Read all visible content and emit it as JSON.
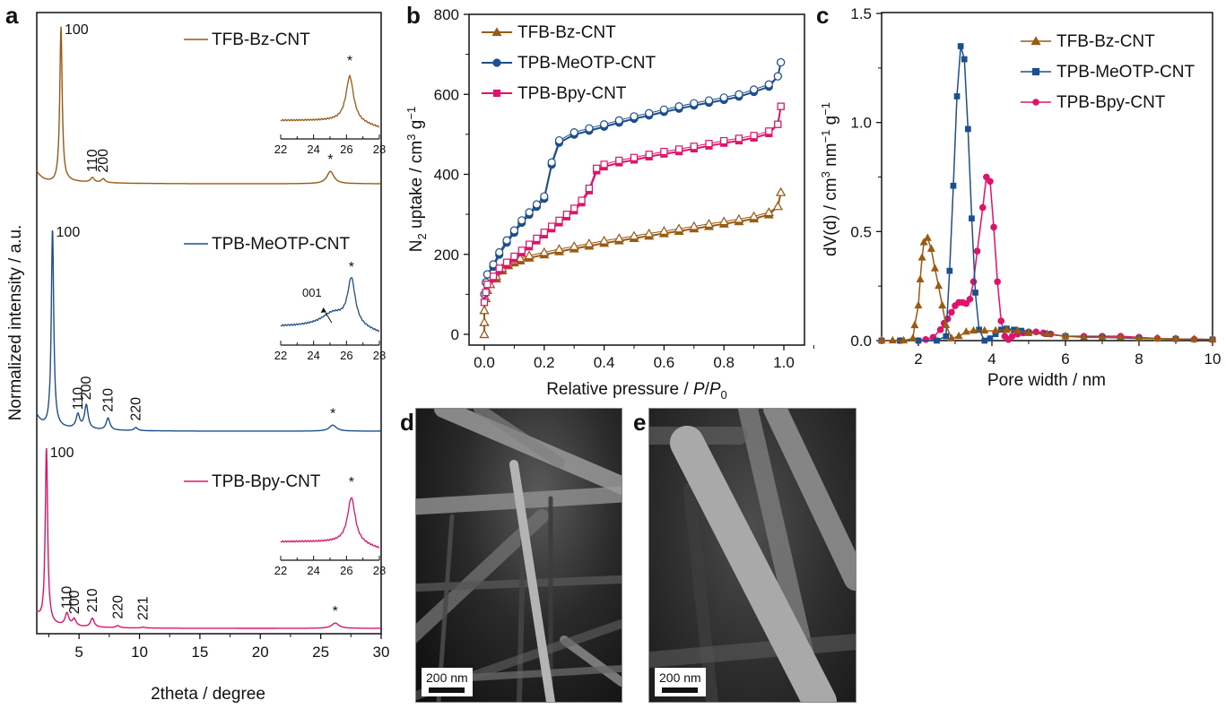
{
  "colors": {
    "TFB-Bz-CNT": "#9b5a12",
    "TPB-MeOTP-CNT": "#1c4f8f",
    "TPB-Bpy-CNT": "#e0136b"
  },
  "panels": {
    "a": {
      "letter": "a"
    },
    "b": {
      "letter": "b"
    },
    "c": {
      "letter": "c"
    },
    "d": {
      "letter": "d",
      "scale_bar": "200 nm"
    },
    "e": {
      "letter": "e",
      "scale_bar": "200 nm"
    }
  },
  "chart_data": [
    {
      "id": "a",
      "type": "line",
      "title": "",
      "xlabel": "2theta / degree",
      "ylabel": "Normalized intensity / a.u.",
      "xlim": [
        1.5,
        30
      ],
      "xticks": [
        5,
        10,
        15,
        20,
        25,
        30
      ],
      "yticks": [],
      "grid": false,
      "series": [
        {
          "name": "TFB-Bz-CNT",
          "peaks": [
            {
              "x": 3.5,
              "label": "100",
              "rel": 1.0
            },
            {
              "x": 6.1,
              "label": "110",
              "rel": 0.03
            },
            {
              "x": 7.0,
              "label": "200",
              "rel": 0.025
            },
            {
              "x": 25.8,
              "label": "*",
              "rel": 0.08
            }
          ],
          "inset": {
            "xlim": [
              22,
              28
            ],
            "xticks": [
              22,
              24,
              26,
              28
            ],
            "peak_x": 26.2,
            "peak_label": "*"
          }
        },
        {
          "name": "TPB-MeOTP-CNT",
          "peaks": [
            {
              "x": 2.8,
              "label": "100",
              "rel": 1.0
            },
            {
              "x": 4.9,
              "label": "110",
              "rel": 0.07
            },
            {
              "x": 5.6,
              "label": "200",
              "rel": 0.12
            },
            {
              "x": 7.4,
              "label": "210",
              "rel": 0.06
            },
            {
              "x": 9.7,
              "label": "220",
              "rel": 0.015
            },
            {
              "x": 26.0,
              "label": "*",
              "rel": 0.03
            }
          ],
          "inset": {
            "xlim": [
              22,
              28
            ],
            "xticks": [
              22,
              24,
              26,
              28
            ],
            "peak_x": 26.3,
            "peak_label": "*",
            "annotation": "001",
            "annotation_x": 25.0
          }
        },
        {
          "name": "TPB-Bpy-CNT",
          "peaks": [
            {
              "x": 2.3,
              "label": "100",
              "rel": 1.0
            },
            {
              "x": 4.0,
              "label": "110",
              "rel": 0.07
            },
            {
              "x": 4.6,
              "label": "200",
              "rel": 0.04
            },
            {
              "x": 6.1,
              "label": "210",
              "rel": 0.05
            },
            {
              "x": 8.2,
              "label": "220",
              "rel": 0.012
            },
            {
              "x": 10.3,
              "label": "221",
              "rel": 0.005
            },
            {
              "x": 26.2,
              "label": "*",
              "rel": 0.03
            }
          ],
          "inset": {
            "xlim": [
              22,
              28
            ],
            "xticks": [
              22,
              24,
              26,
              28
            ],
            "peak_x": 26.3,
            "peak_label": "*"
          }
        }
      ]
    },
    {
      "id": "b",
      "type": "line",
      "title": "",
      "xlabel": "Relative pressure / P/P0",
      "ylabel": "N2 uptake / cm3 g-1",
      "xlim": [
        -0.03,
        1.07
      ],
      "ylim": [
        -20,
        800
      ],
      "xticks": [
        0.0,
        0.2,
        0.4,
        0.6,
        0.8,
        1.0
      ],
      "xtick_labels": [
        "0.0",
        "0.2",
        "0.4",
        "0.6",
        "0.8",
        "1.0"
      ],
      "yticks": [
        0,
        200,
        400,
        600,
        800
      ],
      "grid": false,
      "legend": "top-left",
      "series": [
        {
          "name": "TFB-Bz-CNT",
          "marker": "triangle",
          "x": [
            0.0,
            0.0,
            0.0,
            0.005,
            0.01,
            0.02,
            0.04,
            0.06,
            0.08,
            0.1,
            0.12,
            0.15,
            0.2,
            0.25,
            0.3,
            0.35,
            0.4,
            0.45,
            0.5,
            0.55,
            0.6,
            0.65,
            0.7,
            0.75,
            0.8,
            0.85,
            0.9,
            0.95,
            0.98,
            0.99
          ],
          "y": [
            0,
            30,
            60,
            90,
            110,
            125,
            145,
            165,
            178,
            185,
            190,
            197,
            205,
            213,
            220,
            227,
            234,
            240,
            246,
            252,
            258,
            264,
            270,
            276,
            282,
            288,
            295,
            305,
            320,
            355
          ]
        },
        {
          "name": "TPB-MeOTP-CNT",
          "marker": "circle",
          "x": [
            0.0,
            0.005,
            0.01,
            0.03,
            0.05,
            0.075,
            0.1,
            0.125,
            0.15,
            0.175,
            0.2,
            0.225,
            0.25,
            0.3,
            0.35,
            0.4,
            0.45,
            0.5,
            0.55,
            0.6,
            0.65,
            0.7,
            0.75,
            0.8,
            0.85,
            0.9,
            0.95,
            0.98,
            0.99
          ],
          "y": [
            100,
            130,
            150,
            175,
            205,
            235,
            260,
            285,
            305,
            325,
            345,
            430,
            485,
            505,
            515,
            525,
            535,
            545,
            553,
            562,
            570,
            578,
            585,
            592,
            600,
            612,
            625,
            645,
            680
          ]
        },
        {
          "name": "TPB-Bpy-CNT",
          "marker": "square",
          "x": [
            0.0,
            0.005,
            0.01,
            0.03,
            0.05,
            0.075,
            0.1,
            0.125,
            0.15,
            0.175,
            0.2,
            0.225,
            0.25,
            0.275,
            0.3,
            0.325,
            0.35,
            0.375,
            0.4,
            0.45,
            0.5,
            0.55,
            0.6,
            0.65,
            0.7,
            0.75,
            0.8,
            0.85,
            0.9,
            0.95,
            0.98,
            0.99
          ],
          "y": [
            80,
            105,
            125,
            145,
            165,
            180,
            195,
            210,
            225,
            240,
            255,
            270,
            285,
            300,
            315,
            335,
            365,
            415,
            425,
            435,
            442,
            450,
            457,
            463,
            470,
            477,
            484,
            490,
            497,
            508,
            525,
            570
          ]
        }
      ]
    },
    {
      "id": "c",
      "type": "line",
      "title": "",
      "xlabel": "Pore width / nm",
      "ylabel": "dV(d) / cm3 nm-1 g-1",
      "xlim": [
        1,
        10
      ],
      "ylim": [
        0,
        1.5
      ],
      "xticks": [
        2,
        4,
        6,
        8,
        10
      ],
      "yticks": [
        0.0,
        0.5,
        1.0,
        1.5
      ],
      "ytick_labels": [
        "0.0",
        "0.5",
        "1.0",
        "1.5"
      ],
      "grid": false,
      "legend": "top-right",
      "series": [
        {
          "name": "TFB-Bz-CNT",
          "marker": "triangle",
          "x": [
            1.0,
            1.3,
            1.6,
            1.85,
            1.9,
            2.0,
            2.05,
            2.1,
            2.15,
            2.25,
            2.35,
            2.45,
            2.55,
            2.65,
            2.75,
            2.9,
            3.1,
            3.3,
            3.5,
            3.8,
            4.1,
            4.4,
            4.7,
            5.0,
            5.5,
            6.0,
            6.5,
            7.0,
            7.5,
            8.0,
            8.5,
            9.0,
            9.5,
            10.0
          ],
          "y": [
            0.0,
            0.0,
            0.0,
            0.01,
            0.07,
            0.16,
            0.28,
            0.38,
            0.45,
            0.47,
            0.42,
            0.33,
            0.25,
            0.16,
            0.07,
            0.01,
            0.02,
            0.04,
            0.045,
            0.045,
            0.045,
            0.048,
            0.045,
            0.035,
            0.03,
            0.02,
            0.015,
            0.015,
            0.015,
            0.012,
            0.01,
            0.008,
            0.006,
            0.005
          ]
        },
        {
          "name": "TPB-MeOTP-CNT",
          "marker": "square",
          "x": [
            1.0,
            1.5,
            2.0,
            2.5,
            2.75,
            2.85,
            2.95,
            3.05,
            3.15,
            3.25,
            3.35,
            3.45,
            3.55,
            3.65,
            3.8,
            3.95,
            4.1,
            4.25,
            4.4,
            4.6,
            4.8,
            5.0,
            5.5,
            6.0,
            7.0,
            8.0,
            9.0,
            10.0
          ],
          "y": [
            0.0,
            0.0,
            0.0,
            0.0,
            0.02,
            0.32,
            0.71,
            1.12,
            1.35,
            1.29,
            0.97,
            0.56,
            0.22,
            0.05,
            0.0,
            0.01,
            0.03,
            0.05,
            0.055,
            0.05,
            0.045,
            0.035,
            0.03,
            0.02,
            0.015,
            0.01,
            0.008,
            0.005
          ]
        },
        {
          "name": "TPB-Bpy-CNT",
          "marker": "circle",
          "x": [
            1.0,
            1.5,
            2.0,
            2.2,
            2.4,
            2.6,
            2.7,
            2.8,
            2.9,
            3.0,
            3.1,
            3.2,
            3.3,
            3.4,
            3.5,
            3.6,
            3.75,
            3.85,
            3.95,
            4.05,
            4.15,
            4.25,
            4.35,
            4.45,
            4.55,
            4.7,
            4.85,
            5.0,
            5.2,
            5.4,
            5.6,
            6.0,
            6.5,
            7.0,
            7.5,
            8.0,
            8.5,
            9.0,
            9.5,
            10.0
          ],
          "y": [
            0.0,
            0.0,
            0.0,
            0.005,
            0.015,
            0.05,
            0.08,
            0.1,
            0.13,
            0.16,
            0.175,
            0.175,
            0.17,
            0.19,
            0.27,
            0.41,
            0.61,
            0.75,
            0.73,
            0.52,
            0.27,
            0.09,
            0.02,
            0.005,
            0.02,
            0.03,
            0.035,
            0.04,
            0.04,
            0.035,
            0.03,
            0.02,
            0.02,
            0.02,
            0.02,
            0.015,
            0.01,
            0.008,
            0.006,
            0.005
          ]
        }
      ]
    }
  ]
}
